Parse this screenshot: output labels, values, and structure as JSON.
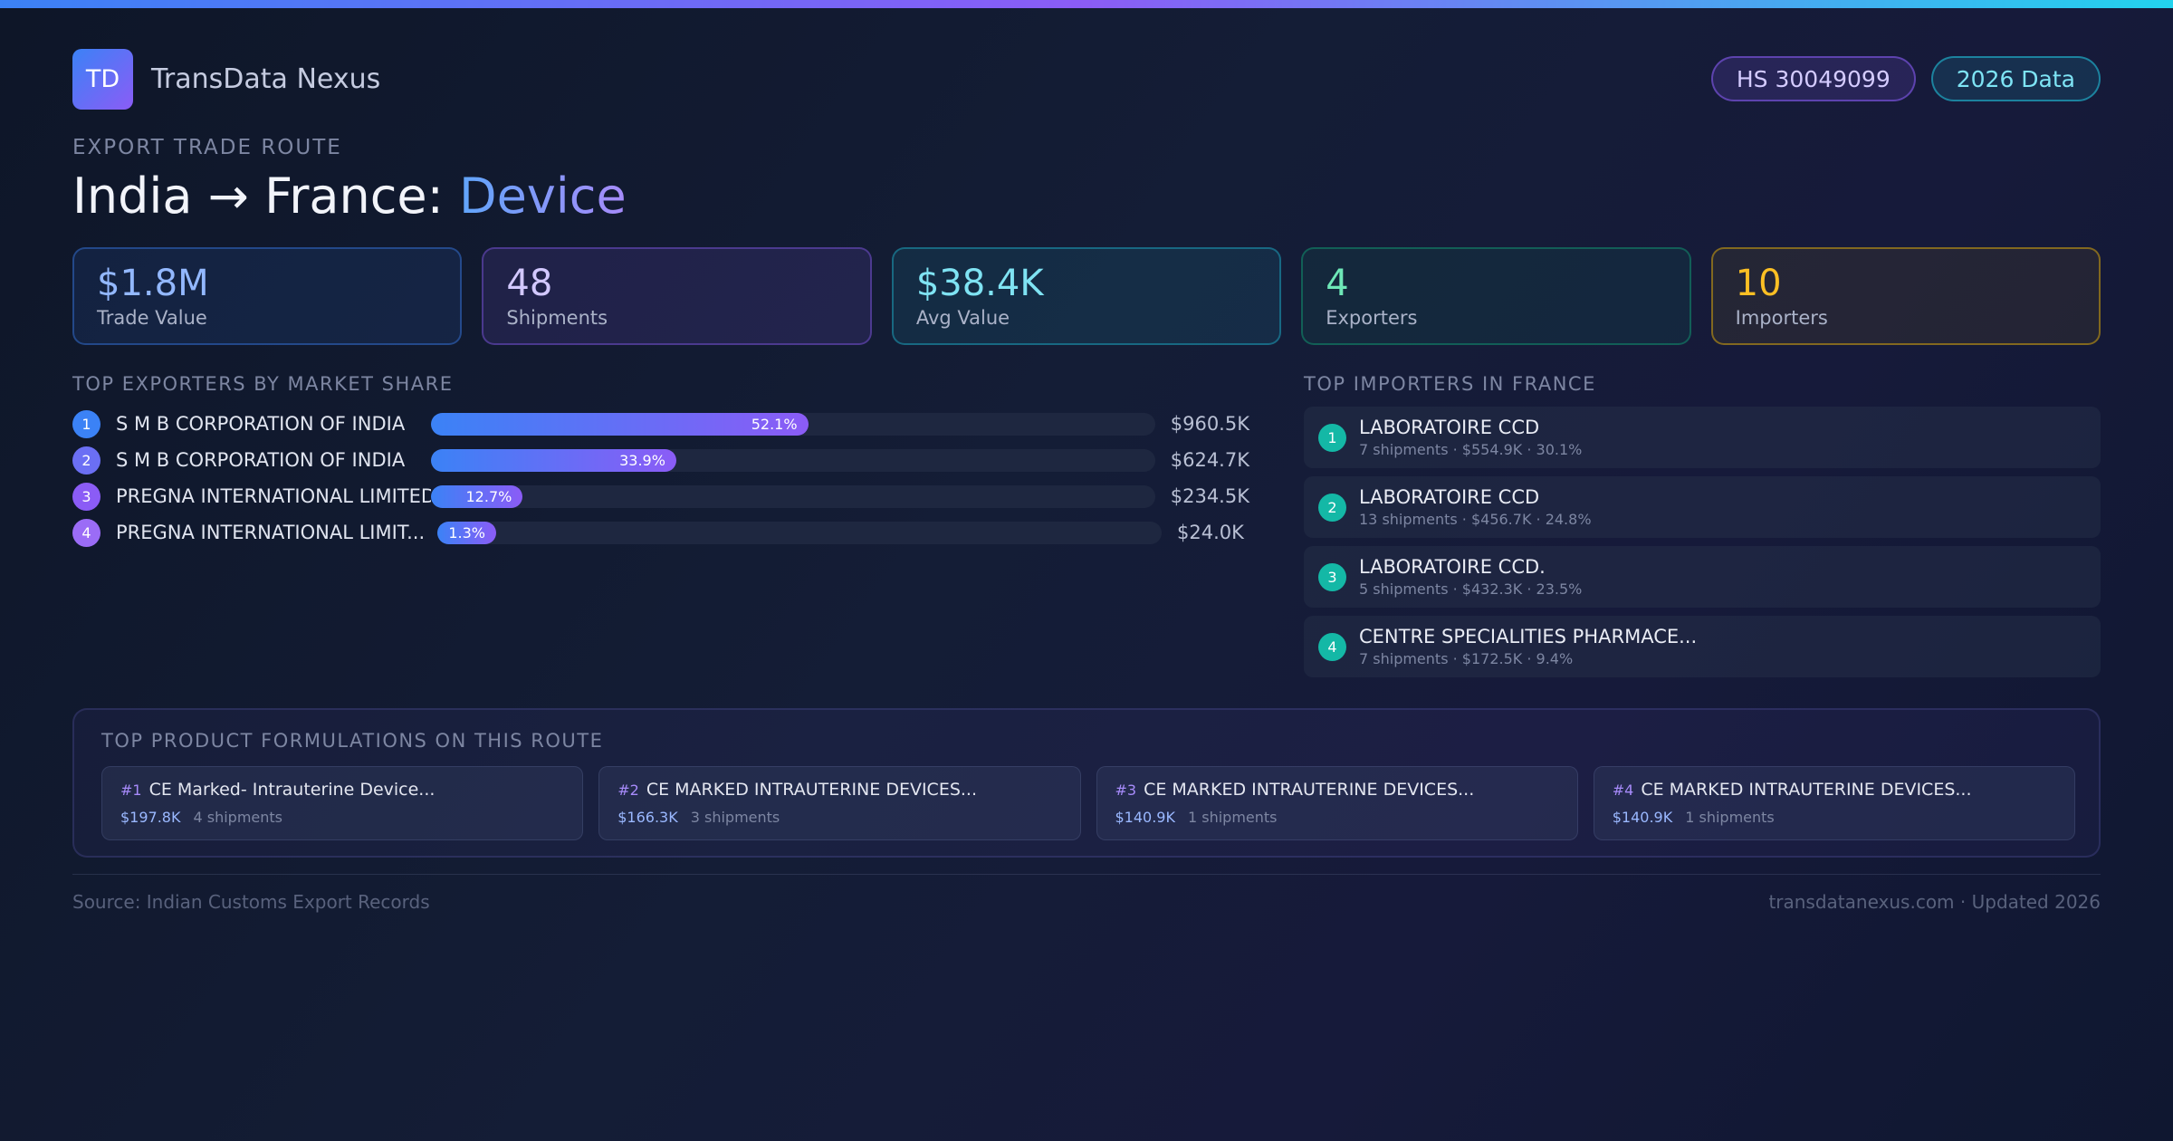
{
  "brand": {
    "logo_text": "TD",
    "name": "TransData Nexus"
  },
  "pills": {
    "hs": "HS 30049099",
    "year": "2026 Data"
  },
  "route": {
    "eyebrow": "EXPORT TRADE ROUTE",
    "title_main": "India → France: ",
    "title_accent": "Device"
  },
  "stats": [
    {
      "value": "$1.8M",
      "label": "Trade Value"
    },
    {
      "value": "48",
      "label": "Shipments"
    },
    {
      "value": "$38.4K",
      "label": "Avg Value"
    },
    {
      "value": "4",
      "label": "Exporters"
    },
    {
      "value": "10",
      "label": "Importers"
    }
  ],
  "exporters": {
    "title": "TOP EXPORTERS BY MARKET SHARE",
    "items": [
      {
        "rank": "1",
        "name": "S M B CORPORATION OF INDIA",
        "share": 52.1,
        "share_label": "52.1%",
        "value": "$960.5K"
      },
      {
        "rank": "2",
        "name": "S M B CORPORATION OF INDIA",
        "share": 33.9,
        "share_label": "33.9%",
        "value": "$624.7K"
      },
      {
        "rank": "3",
        "name": "PREGNA INTERNATIONAL LIMITED",
        "share": 12.7,
        "share_label": "12.7%",
        "value": "$234.5K"
      },
      {
        "rank": "4",
        "name": "PREGNA INTERNATIONAL LIMIT...",
        "share": 1.3,
        "share_label": "1.3%",
        "value": "$24.0K"
      }
    ]
  },
  "importers": {
    "title": "TOP IMPORTERS IN FRANCE",
    "items": [
      {
        "rank": "1",
        "name": "LABORATOIRE CCD",
        "meta": "7 shipments · $554.9K · 30.1%"
      },
      {
        "rank": "2",
        "name": "LABORATOIRE CCD",
        "meta": "13 shipments · $456.7K · 24.8%"
      },
      {
        "rank": "3",
        "name": "LABORATOIRE CCD.",
        "meta": "5 shipments · $432.3K · 23.5%"
      },
      {
        "rank": "4",
        "name": "CENTRE SPECIALITIES PHARMACE...",
        "meta": "7 shipments · $172.5K · 9.4%"
      }
    ]
  },
  "products": {
    "title": "TOP PRODUCT FORMULATIONS ON THIS ROUTE",
    "items": [
      {
        "num": "#1",
        "name": "CE Marked- Intrauterine Device...",
        "value": "$197.8K",
        "shipments": "4 shipments"
      },
      {
        "num": "#2",
        "name": "CE MARKED INTRAUTERINE DEVICES...",
        "value": "$166.3K",
        "shipments": "3 shipments"
      },
      {
        "num": "#3",
        "name": "CE MARKED INTRAUTERINE DEVICES...",
        "value": "$140.9K",
        "shipments": "1 shipments"
      },
      {
        "num": "#4",
        "name": "CE MARKED INTRAUTERINE DEVICES...",
        "value": "$140.9K",
        "shipments": "1 shipments"
      }
    ]
  },
  "footer": {
    "source": "Source: Indian Customs Export Records",
    "site": "transdatanexus.com · Updated 2026"
  }
}
